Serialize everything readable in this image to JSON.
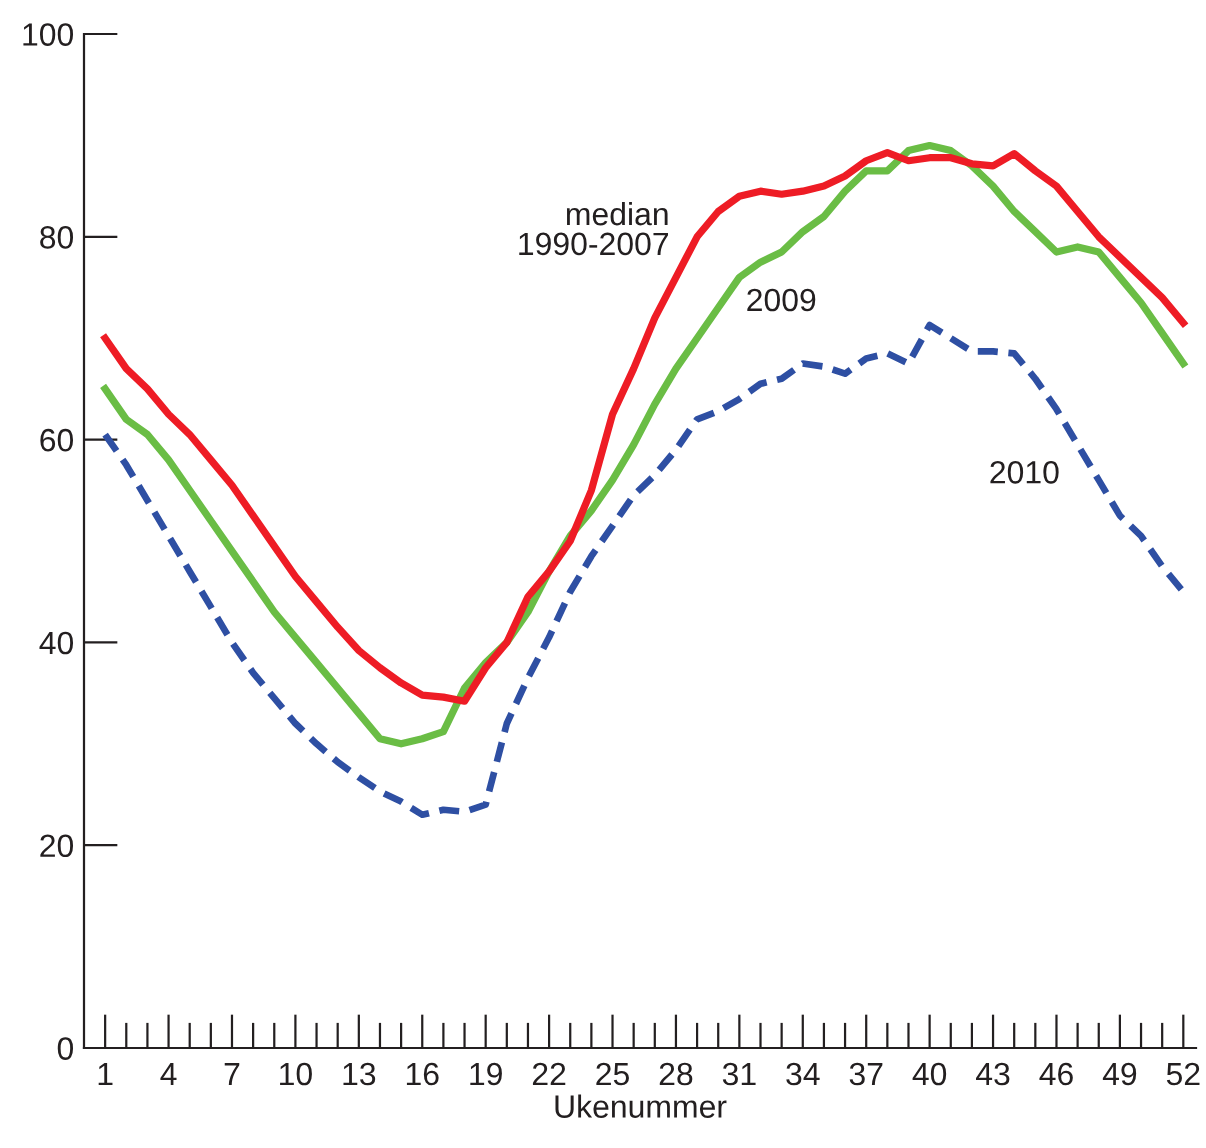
{
  "chart_data": {
    "type": "line",
    "xlabel": "Ukenummer",
    "x": [
      1,
      2,
      3,
      4,
      5,
      6,
      7,
      8,
      9,
      10,
      11,
      12,
      13,
      14,
      15,
      16,
      17,
      18,
      19,
      20,
      21,
      22,
      23,
      24,
      25,
      26,
      27,
      28,
      29,
      30,
      31,
      32,
      33,
      34,
      35,
      36,
      37,
      38,
      39,
      40,
      41,
      42,
      43,
      44,
      45,
      46,
      47,
      48,
      49,
      50,
      51,
      52
    ],
    "series": [
      {
        "name": "median\n1990-2007",
        "color": "#ee1c25",
        "line_style": "solid",
        "values": [
          70,
          67,
          65,
          62.5,
          60.5,
          58,
          55.5,
          52.5,
          49.5,
          46.5,
          44,
          41.5,
          39.2,
          37.5,
          36,
          34.8,
          34.6,
          34.2,
          37.5,
          40,
          44.5,
          47,
          50,
          55,
          62.5,
          67,
          72,
          76,
          80,
          82.5,
          84,
          84.5,
          84.2,
          84.5,
          85,
          86,
          87.5,
          88.3,
          87.5,
          87.8,
          87.8,
          87.2,
          87,
          88.2,
          86.5,
          85,
          82.5,
          80,
          78,
          76,
          74,
          71.5
        ]
      },
      {
        "name": "2009",
        "color": "#6abd45",
        "line_style": "solid",
        "values": [
          65,
          62,
          60.5,
          58,
          55,
          52,
          49,
          46,
          43,
          40.5,
          38,
          35.5,
          33,
          30.5,
          30,
          30.5,
          31.2,
          35.5,
          38,
          40,
          43,
          47,
          50.5,
          53,
          56,
          59.5,
          63.5,
          67,
          70,
          73,
          76,
          77.5,
          78.5,
          80.5,
          82,
          84.5,
          86.5,
          86.5,
          88.5,
          89,
          88.5,
          87,
          85,
          82.5,
          80.5,
          78.5,
          79,
          78.5,
          76,
          73.5,
          70.5,
          67.5
        ]
      },
      {
        "name": "2010",
        "color": "#2e4fa3",
        "line_style": "dashed",
        "values": [
          60.5,
          57.5,
          54,
          50.5,
          47,
          43.5,
          40,
          37,
          34.5,
          32,
          30,
          28.2,
          26.7,
          25.3,
          24.3,
          23,
          23.5,
          23.3,
          24,
          32,
          36.5,
          40.5,
          45,
          48.5,
          51.5,
          54.5,
          56.5,
          59,
          62,
          62.8,
          64,
          65.5,
          66,
          67.5,
          67.2,
          66.5,
          68,
          68.5,
          67.5,
          71.3,
          70,
          68.7,
          68.7,
          68.5,
          66,
          63,
          59.5,
          56,
          52.5,
          50.5,
          47.5,
          45
        ]
      }
    ],
    "xlim": [
      0,
      52.6
    ],
    "ylim": [
      0,
      100
    ],
    "xticks": [
      1,
      {
        "value": 2,
        "label": null
      },
      {
        "value": 3,
        "label": null
      },
      4,
      {
        "value": 5,
        "label": null
      },
      {
        "value": 6,
        "label": null
      },
      7,
      {
        "value": 8,
        "label": null
      },
      {
        "value": 9,
        "label": null
      },
      10,
      {
        "value": 11,
        "label": null
      },
      {
        "value": 12,
        "label": null
      },
      13,
      {
        "value": 14,
        "label": null
      },
      {
        "value": 15,
        "label": null
      },
      16,
      {
        "value": 17,
        "label": null
      },
      {
        "value": 18,
        "label": null
      },
      19,
      {
        "value": 20,
        "label": null
      },
      {
        "value": 21,
        "label": null
      },
      22,
      {
        "value": 23,
        "label": null
      },
      {
        "value": 24,
        "label": null
      },
      25,
      {
        "value": 26,
        "label": null
      },
      {
        "value": 27,
        "label": null
      },
      28,
      {
        "value": 29,
        "label": null
      },
      {
        "value": 30,
        "label": null
      },
      31,
      {
        "value": 32,
        "label": null
      },
      {
        "value": 33,
        "label": null
      },
      34,
      {
        "value": 35,
        "label": null
      },
      {
        "value": 36,
        "label": null
      },
      37,
      {
        "value": 38,
        "label": null
      },
      {
        "value": 39,
        "label": null
      },
      40,
      {
        "value": 41,
        "label": null
      },
      {
        "value": 42,
        "label": null
      },
      43,
      {
        "value": 44,
        "label": null
      },
      {
        "value": 45,
        "label": null
      },
      46,
      {
        "value": 47,
        "label": null
      },
      {
        "value": 48,
        "label": null
      },
      49,
      {
        "value": 50,
        "label": null
      },
      {
        "value": 51,
        "label": null
      },
      52
    ],
    "yticks": [
      0,
      20,
      40,
      60,
      80,
      100
    ],
    "grid": false,
    "legend": false,
    "marker": "none"
  }
}
